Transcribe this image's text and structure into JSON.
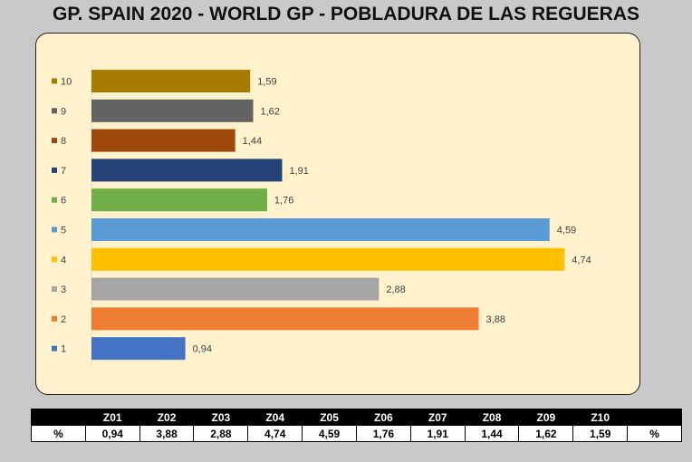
{
  "title": "GP. SPAIN 2020 - WORLD GP - POBLADURA DE LAS REGUERAS",
  "chart_data": {
    "type": "bar",
    "orientation": "horizontal",
    "categories": [
      "10",
      "9",
      "8",
      "7",
      "6",
      "5",
      "4",
      "3",
      "2",
      "1"
    ],
    "values": [
      1.59,
      1.62,
      1.44,
      1.91,
      1.76,
      4.59,
      4.74,
      2.88,
      3.88,
      0.94
    ],
    "value_labels": [
      "1,59",
      "1,62",
      "1,44",
      "1,91",
      "1,76",
      "4,59",
      "4,74",
      "2,88",
      "3,88",
      "0,94"
    ],
    "colors": [
      "#a67c00",
      "#636363",
      "#9e480e",
      "#264478",
      "#70ad47",
      "#5b9bd5",
      "#ffc000",
      "#a5a5a5",
      "#ed7d31",
      "#4472c4"
    ],
    "xlim": [
      0,
      5.3
    ],
    "grid": false,
    "legend": "left"
  },
  "table": {
    "header": [
      "",
      "Z01",
      "Z02",
      "Z03",
      "Z04",
      "Z05",
      "Z06",
      "Z07",
      "Z08",
      "Z09",
      "Z10",
      ""
    ],
    "row_label": "%",
    "values": [
      "0,94",
      "3,88",
      "2,88",
      "4,74",
      "4,59",
      "1,76",
      "1,91",
      "1,44",
      "1,62",
      "1,59"
    ],
    "row_end": "%"
  }
}
